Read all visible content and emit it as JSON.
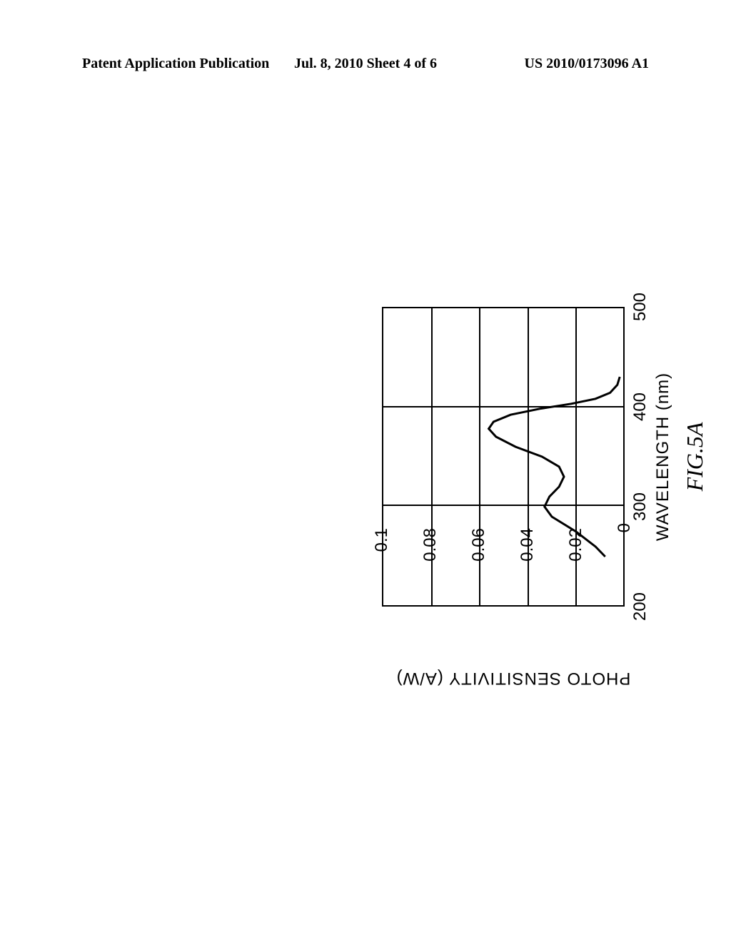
{
  "header": {
    "left": "Patent Application Publication",
    "center": "Jul. 8, 2010  Sheet 4 of 6",
    "right": "US 2010/0173096 A1"
  },
  "chart": {
    "type": "line",
    "x_label": "WAVELENGTH (nm)",
    "y_label": "PHOTO SENSITIVITY (A/W)",
    "figure_label": "FIG.5A",
    "xlim": [
      200,
      500
    ],
    "ylim": [
      0,
      0.1
    ],
    "x_ticks": [
      200,
      300,
      400,
      500
    ],
    "y_ticks": [
      0,
      0.02,
      0.04,
      0.06,
      0.08,
      0.1
    ],
    "y_tick_labels": [
      "0",
      "0.02",
      "0.04",
      "0.06",
      "0.08",
      "0.1"
    ],
    "x_tick_labels": [
      "200",
      "300",
      "400",
      "500"
    ],
    "curve_points": [
      [
        250,
        0.008
      ],
      [
        260,
        0.012
      ],
      [
        275,
        0.02
      ],
      [
        290,
        0.03
      ],
      [
        300,
        0.033
      ],
      [
        310,
        0.031
      ],
      [
        320,
        0.027
      ],
      [
        330,
        0.025
      ],
      [
        340,
        0.027
      ],
      [
        350,
        0.034
      ],
      [
        360,
        0.045
      ],
      [
        370,
        0.053
      ],
      [
        378,
        0.056
      ],
      [
        385,
        0.054
      ],
      [
        392,
        0.047
      ],
      [
        398,
        0.035
      ],
      [
        403,
        0.022
      ],
      [
        408,
        0.012
      ],
      [
        414,
        0.006
      ],
      [
        422,
        0.003
      ],
      [
        430,
        0.002
      ]
    ],
    "line_color": "#000000",
    "line_width": 3,
    "background_color": "#ffffff",
    "grid_color": "#000000",
    "label_fontsize": 24,
    "tick_fontsize": 24,
    "title_fontsize": 32
  }
}
